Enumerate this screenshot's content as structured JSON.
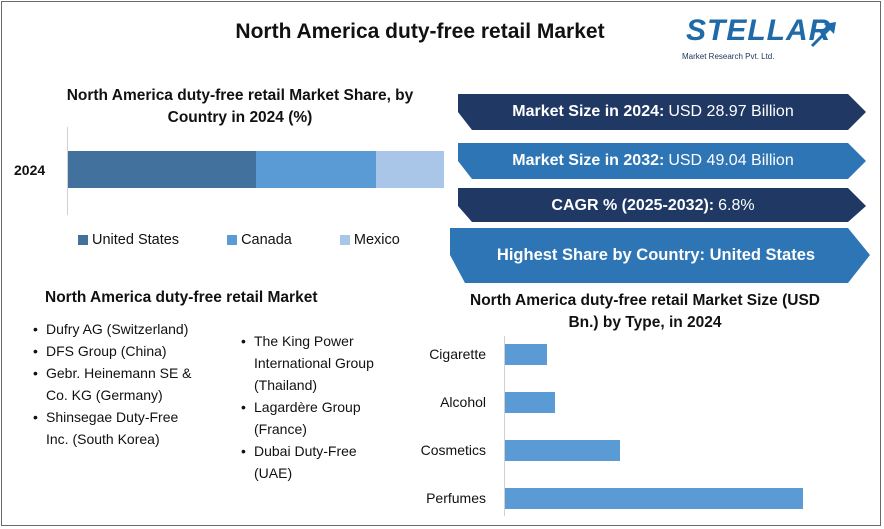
{
  "title": "North America duty-free retail Market",
  "logo": {
    "word": "STELLAR",
    "sub": "Market Research Pvt. Ltd."
  },
  "share_chart": {
    "title": "North America duty-free retail Market Share, by Country in 2024 (%)",
    "year_label": "2024"
  },
  "banners": [
    {
      "key": "Market Size in 2024:",
      "value": "USD 28.97 Billion"
    },
    {
      "key": "Market Size in 2032:",
      "value": "USD 49.04 Billion"
    },
    {
      "key": "CAGR % (2025-2032):",
      "value": "6.8%"
    },
    {
      "key": "Highest Share by Country: United States",
      "value": ""
    }
  ],
  "players": {
    "title": "North America duty-free retail Market",
    "left": [
      "Dufry AG (Switzerland)",
      "DFS Group (China)",
      "Gebr. Heinemann SE & Co. KG (Germany)",
      "Shinsegae Duty-Free Inc. (South Korea)"
    ],
    "right": [
      "The King Power International Group (Thailand)",
      "Lagardère Group (France)",
      "Dubai Duty-Free (UAE)"
    ]
  },
  "type_chart": {
    "title": "North America duty-free retail Market Size (USD Bn.) by Type, in 2024"
  },
  "colors": {
    "us": "#41719c",
    "canada": "#5b9bd5",
    "mexico": "#a9c5e8",
    "banner_dark": "#1f3864",
    "banner_light": "#2e75b6",
    "bar": "#5b9bd5"
  },
  "chart_data": [
    {
      "type": "bar",
      "orientation": "horizontal-stacked",
      "categories": [
        "2024"
      ],
      "series": [
        {
          "name": "United States",
          "values": [
            50
          ]
        },
        {
          "name": "Canada",
          "values": [
            32
          ]
        },
        {
          "name": "Mexico",
          "values": [
            18
          ]
        }
      ],
      "legend": "bottom"
    },
    {
      "type": "bar",
      "orientation": "horizontal",
      "categories": [
        "Cigarette",
        "Alcohol",
        "Cosmetics",
        "Perfumes"
      ],
      "values": [
        2.1,
        2.5,
        5.8,
        15.0
      ],
      "xlim": [
        0,
        16
      ]
    }
  ]
}
